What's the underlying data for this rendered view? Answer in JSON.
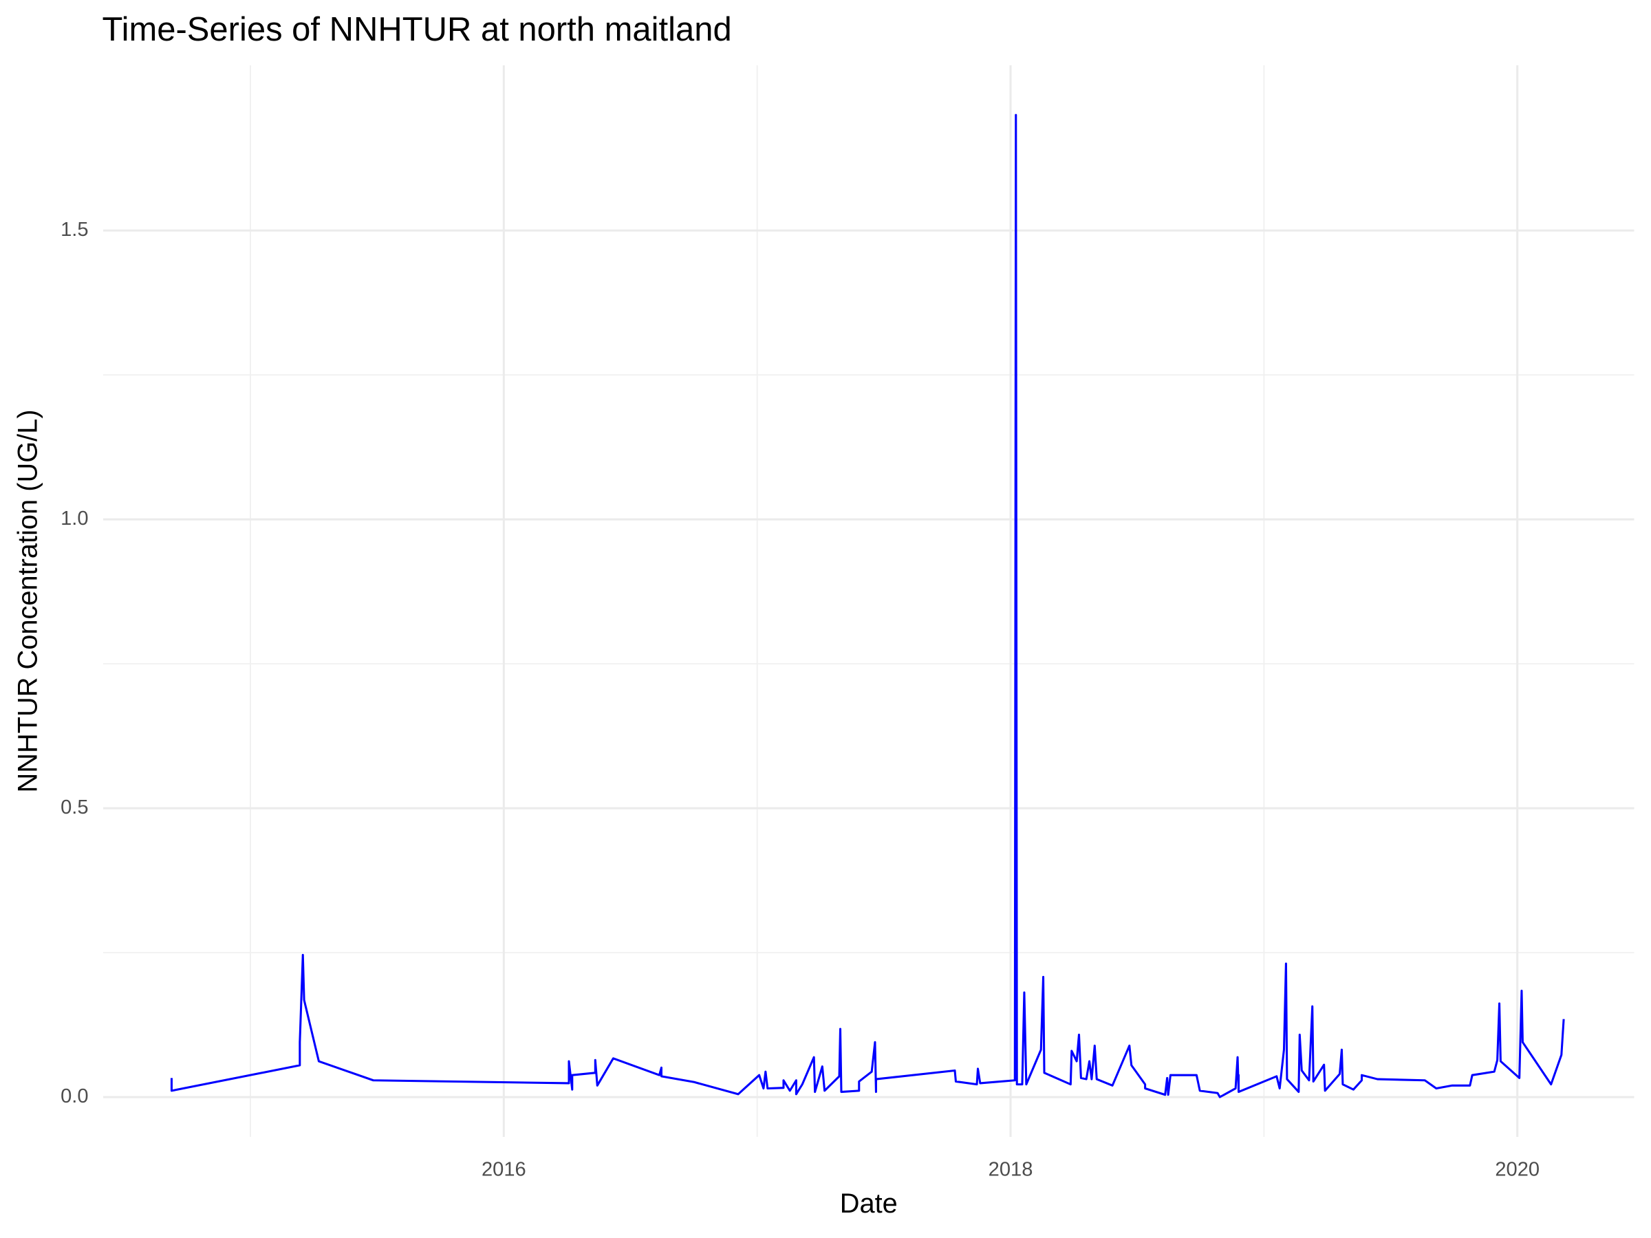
{
  "chart_data": {
    "type": "line",
    "title": "Time-Series of NNHTUR at north maitland",
    "x_label": "Date",
    "y_label": "NNHTUR Concentration (UG/L)",
    "xlim": [
      2014.419,
      2020.461
    ],
    "ylim": [
      -0.069,
      1.786
    ],
    "xticks": [
      2016,
      2018,
      2020
    ],
    "yticks": [
      {
        "value": 0,
        "label": "0.0"
      },
      0.5,
      {
        "value": 1,
        "label": "1.0"
      },
      1.5
    ],
    "x_minor_ticks": [
      2015,
      2017,
      2019
    ],
    "y_minor_ticks": [
      0.25,
      0.75,
      1.25
    ],
    "grid": true,
    "series": [
      {
        "name": "NNHTUR",
        "color": "#0000ff",
        "x": [
          2014.689,
          2014.689,
          2015.195,
          2015.195,
          2015.207,
          2015.212,
          2015.27,
          2015.485,
          2016.257,
          2016.257,
          2016.27,
          2016.27,
          2016.361,
          2016.361,
          2016.369,
          2016.432,
          2016.614,
          2016.622,
          2016.622,
          2016.751,
          2016.925,
          2017.008,
          2017.025,
          2017.033,
          2017.041,
          2017.104,
          2017.104,
          2017.129,
          2017.154,
          2017.154,
          2017.178,
          2017.224,
          2017.228,
          2017.257,
          2017.266,
          2017.324,
          2017.328,
          2017.332,
          2017.402,
          2017.402,
          2017.452,
          2017.465,
          2017.469,
          2017.469,
          2017.78,
          2017.784,
          2017.867,
          2017.871,
          2017.88,
          2018.017,
          2018.021,
          2018.025,
          2018.046,
          2018.054,
          2018.062,
          2018.12,
          2018.129,
          2018.133,
          2018.237,
          2018.241,
          2018.261,
          2018.27,
          2018.278,
          2018.299,
          2018.311,
          2018.32,
          2018.332,
          2018.34,
          2018.402,
          2018.469,
          2018.477,
          2018.531,
          2018.531,
          2018.61,
          2018.618,
          2018.622,
          2018.631,
          2018.734,
          2018.747,
          2018.817,
          2018.826,
          2018.888,
          2018.896,
          2018.9,
          2018.9,
          2018.9,
          2019.05,
          2019.062,
          2019.079,
          2019.087,
          2019.091,
          2019.137,
          2019.141,
          2019.149,
          2019.178,
          2019.183,
          2019.191,
          2019.195,
          2019.237,
          2019.241,
          2019.299,
          2019.307,
          2019.311,
          2019.353,
          2019.386,
          2019.386,
          2019.448,
          2019.635,
          2019.68,
          2019.743,
          2019.813,
          2019.822,
          2019.909,
          2019.921,
          2019.929,
          2019.934,
          2020.008,
          2020.017,
          2020.021,
          2020.133,
          2020.174,
          2020.183
        ],
        "values": [
          0.033,
          0.011,
          0.055,
          0.095,
          0.246,
          0.168,
          0.062,
          0.029,
          0.024,
          0.062,
          0.013,
          0.038,
          0.042,
          0.064,
          0.02,
          0.067,
          0.038,
          0.051,
          0.036,
          0.026,
          0.005,
          0.038,
          0.015,
          0.044,
          0.015,
          0.016,
          0.029,
          0.011,
          0.029,
          0.005,
          0.022,
          0.069,
          0.009,
          0.053,
          0.011,
          0.036,
          0.118,
          0.009,
          0.011,
          0.027,
          0.044,
          0.095,
          0.009,
          0.031,
          0.046,
          0.027,
          0.022,
          0.049,
          0.024,
          0.029,
          1.7,
          0.022,
          0.022,
          0.181,
          0.022,
          0.082,
          0.208,
          0.042,
          0.022,
          0.08,
          0.062,
          0.108,
          0.033,
          0.031,
          0.062,
          0.031,
          0.089,
          0.031,
          0.02,
          0.089,
          0.055,
          0.022,
          0.015,
          0.004,
          0.033,
          0.004,
          0.038,
          0.038,
          0.011,
          0.007,
          0.0,
          0.015,
          0.069,
          0.011,
          0.038,
          0.009,
          0.036,
          0.015,
          0.082,
          0.231,
          0.031,
          0.009,
          0.108,
          0.046,
          0.029,
          0.078,
          0.157,
          0.027,
          0.056,
          0.011,
          0.04,
          0.082,
          0.022,
          0.013,
          0.029,
          0.038,
          0.031,
          0.029,
          0.015,
          0.02,
          0.02,
          0.038,
          0.044,
          0.064,
          0.162,
          0.062,
          0.033,
          0.184,
          0.095,
          0.022,
          0.073,
          0.135
        ]
      }
    ]
  }
}
